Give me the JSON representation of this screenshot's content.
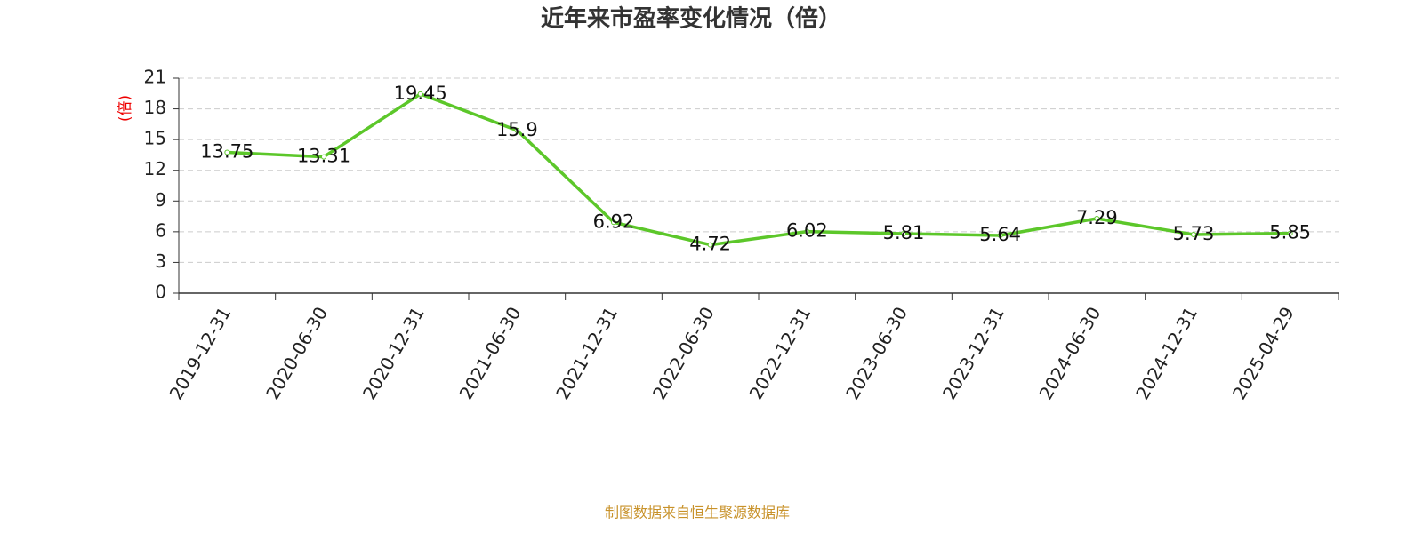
{
  "chart_data": {
    "type": "line",
    "title": "近年来市盈率变化情况（倍）",
    "y_label": "(倍)",
    "categories": [
      "2019-12-31",
      "2020-06-30",
      "2020-12-31",
      "2021-06-30",
      "2021-12-31",
      "2022-06-30",
      "2022-12-31",
      "2023-06-30",
      "2023-12-31",
      "2024-06-30",
      "2024-12-31",
      "2025-04-29"
    ],
    "values": [
      13.75,
      13.31,
      19.45,
      15.9,
      6.92,
      4.72,
      6.02,
      5.81,
      5.64,
      7.29,
      5.73,
      5.85
    ],
    "color": "#5cc72a",
    "ylim": [
      0,
      21
    ],
    "yticks": [
      0,
      3,
      6,
      9,
      12,
      15,
      18,
      21
    ],
    "grid": true,
    "footer": "制图数据来自恒生聚源数据库"
  }
}
